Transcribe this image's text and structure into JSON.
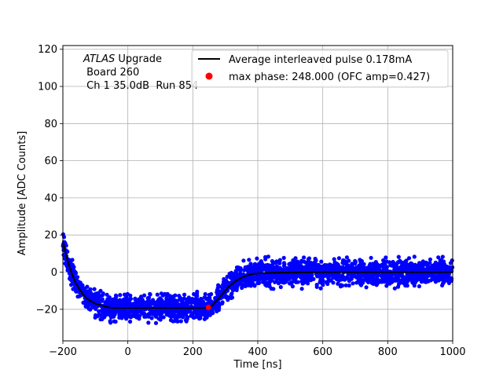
{
  "chart_data": {
    "type": "scatter",
    "xlabel": "Time [ns]",
    "ylabel": "Amplitude [ADC Counts]",
    "xlim": [
      -200,
      1000
    ],
    "ylim": [
      -37,
      122
    ],
    "xticks": [
      -200,
      0,
      200,
      400,
      600,
      800,
      1000
    ],
    "yticks": [
      -20,
      0,
      20,
      40,
      60,
      80,
      100,
      120
    ],
    "xtick_labels": [
      "−200",
      "0",
      "200",
      "400",
      "600",
      "800",
      "1000"
    ],
    "ytick_labels": [
      "−20",
      "0",
      "20",
      "40",
      "60",
      "80",
      "100",
      "120"
    ],
    "grid": true,
    "legend_position": "top-right",
    "annotation": {
      "line1_italic": "ATLAS",
      "line1_rest": " Upgrade",
      "line2": " Board 260",
      "line3": " Ch 1 35.0dB  Run 854"
    },
    "series": [
      {
        "name": "Average interleaved pulse 0.178mA",
        "kind": "line",
        "color": "#000000",
        "x": [
          -200,
          -190,
          -180,
          -170,
          -160,
          -150,
          -140,
          -130,
          -120,
          -110,
          -100,
          -90,
          -80,
          -70,
          -60,
          -50,
          -40,
          -30,
          -20,
          0,
          50,
          100,
          150,
          200,
          230,
          250,
          260,
          270,
          280,
          290,
          300,
          310,
          320,
          330,
          340,
          350,
          360,
          370,
          380,
          390,
          400,
          420,
          450,
          500,
          550,
          600,
          700,
          800,
          900,
          1000
        ],
        "y": [
          17,
          9,
          3,
          -2,
          -6,
          -9,
          -11.5,
          -13.5,
          -15,
          -16,
          -17,
          -17.5,
          -18,
          -18.5,
          -19,
          -19.2,
          -19.3,
          -19.3,
          -19.3,
          -19.3,
          -19.3,
          -19.3,
          -19.3,
          -19.3,
          -19.3,
          -19,
          -18,
          -16,
          -14,
          -12,
          -10,
          -8,
          -6.5,
          -5,
          -4,
          -3,
          -2.2,
          -1.6,
          -1.2,
          -0.9,
          -0.7,
          -0.5,
          -0.3,
          -0.2,
          -0.1,
          0,
          0,
          0,
          0,
          0
        ]
      },
      {
        "name": "max phase: 248.000 (OFC amp=0.427)",
        "kind": "point",
        "color": "#ff0000",
        "x": [
          248
        ],
        "y": [
          -19
        ]
      }
    ],
    "scatter_points": {
      "color": "#0000ff",
      "noise_amplitude": 4.5
    }
  }
}
